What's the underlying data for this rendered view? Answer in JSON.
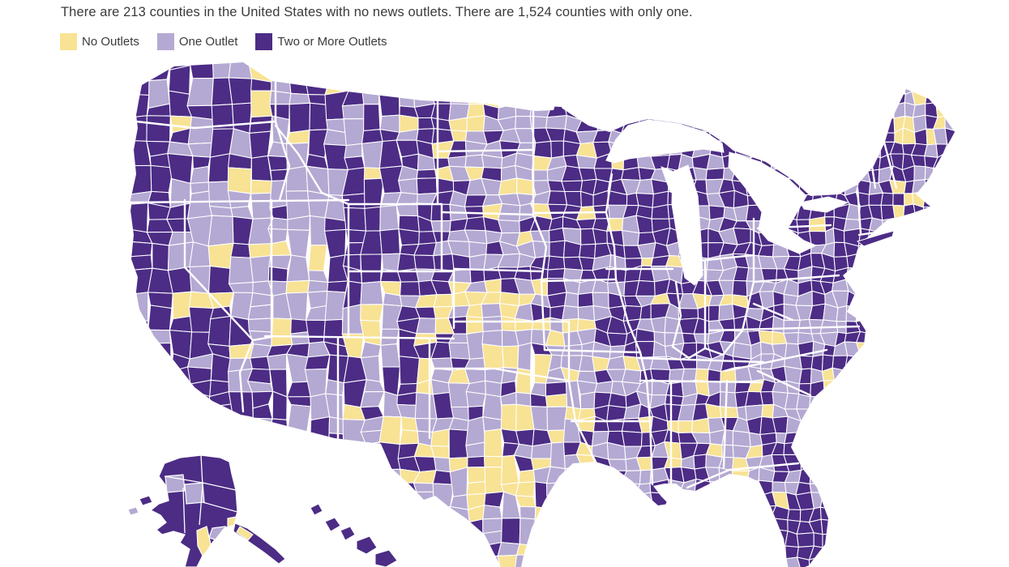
{
  "header": {
    "title": "There are 213 counties in the United States with no news outlets. There are 1,524 counties with only one."
  },
  "legend": {
    "items": [
      {
        "label": "No Outlets",
        "color": "#F8E294"
      },
      {
        "label": "One Outlet",
        "color": "#B4A9D2"
      },
      {
        "label": "Two or More Outlets",
        "color": "#4C2C85"
      }
    ]
  },
  "map": {
    "kind": "choropleth",
    "subject": "U.S. counties by number of news outlets",
    "regions_shown": [
      "Contiguous United States",
      "Alaska",
      "Hawaii"
    ],
    "stats": {
      "counties_with_no_outlets": "213",
      "counties_with_only_one_outlet": "1,524"
    },
    "county_border_color": "#FFFFFF",
    "background_color": "#FFFFFF"
  }
}
